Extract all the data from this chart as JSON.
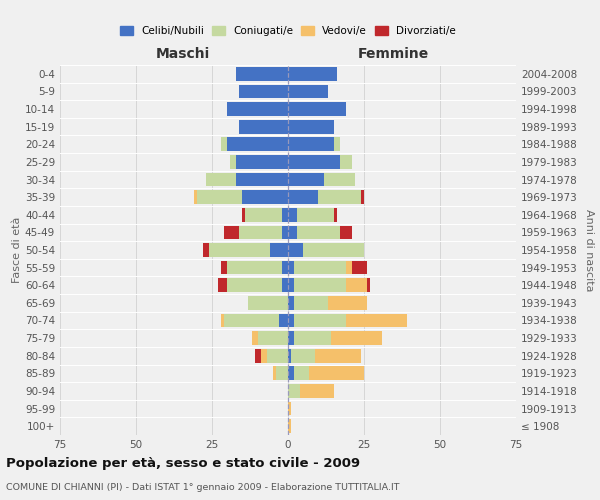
{
  "age_groups": [
    "0-4",
    "5-9",
    "10-14",
    "15-19",
    "20-24",
    "25-29",
    "30-34",
    "35-39",
    "40-44",
    "45-49",
    "50-54",
    "55-59",
    "60-64",
    "65-69",
    "70-74",
    "75-79",
    "80-84",
    "85-89",
    "90-94",
    "95-99",
    "100+"
  ],
  "birth_years": [
    "2004-2008",
    "1999-2003",
    "1994-1998",
    "1989-1993",
    "1984-1988",
    "1979-1983",
    "1974-1978",
    "1969-1973",
    "1964-1968",
    "1959-1963",
    "1954-1958",
    "1949-1953",
    "1944-1948",
    "1939-1943",
    "1934-1938",
    "1929-1933",
    "1924-1928",
    "1919-1923",
    "1914-1918",
    "1909-1913",
    "≤ 1908"
  ],
  "colors": {
    "celibi": "#4472c4",
    "coniugati": "#c5d9a0",
    "vedovi": "#f5c06a",
    "divorziati": "#c0282c"
  },
  "males": {
    "celibi": [
      17,
      16,
      20,
      16,
      20,
      17,
      17,
      15,
      2,
      2,
      6,
      2,
      2,
      0,
      3,
      0,
      0,
      0,
      0,
      0,
      0
    ],
    "coniugati": [
      0,
      0,
      0,
      0,
      2,
      2,
      10,
      15,
      12,
      14,
      20,
      18,
      18,
      13,
      18,
      10,
      7,
      4,
      0,
      0,
      0
    ],
    "vedovi": [
      0,
      0,
      0,
      0,
      0,
      0,
      0,
      1,
      0,
      0,
      0,
      0,
      0,
      0,
      1,
      2,
      2,
      1,
      0,
      0,
      0
    ],
    "divorziati": [
      0,
      0,
      0,
      0,
      0,
      0,
      0,
      0,
      1,
      5,
      2,
      2,
      3,
      0,
      0,
      0,
      2,
      0,
      0,
      0,
      0
    ]
  },
  "females": {
    "nubili": [
      16,
      13,
      19,
      15,
      15,
      17,
      12,
      10,
      3,
      3,
      5,
      2,
      2,
      2,
      2,
      2,
      1,
      2,
      0,
      0,
      0
    ],
    "coniugate": [
      0,
      0,
      0,
      0,
      2,
      4,
      10,
      14,
      12,
      14,
      20,
      17,
      17,
      11,
      17,
      12,
      8,
      5,
      4,
      0,
      0
    ],
    "vedove": [
      0,
      0,
      0,
      0,
      0,
      0,
      0,
      0,
      0,
      0,
      0,
      2,
      7,
      13,
      20,
      17,
      15,
      18,
      11,
      1,
      1
    ],
    "divorziate": [
      0,
      0,
      0,
      0,
      0,
      0,
      0,
      1,
      1,
      4,
      0,
      5,
      1,
      0,
      0,
      0,
      0,
      0,
      0,
      0,
      0
    ]
  },
  "xlim": 75,
  "xticks": [
    -75,
    -50,
    -25,
    0,
    25,
    50,
    75
  ],
  "title": "Popolazione per età, sesso e stato civile - 2009",
  "subtitle": "COMUNE DI CHIANNI (PI) - Dati ISTAT 1° gennaio 2009 - Elaborazione TUTTITALIA.IT",
  "ylabel_left": "Fasce di età",
  "ylabel_right": "Anni di nascita",
  "xlabel_left": "Maschi",
  "xlabel_right": "Femmine",
  "legend_labels": [
    "Celibi/Nubili",
    "Coniugati/e",
    "Vedovi/e",
    "Divorziati/e"
  ],
  "bg_color": "#f0f0f0"
}
